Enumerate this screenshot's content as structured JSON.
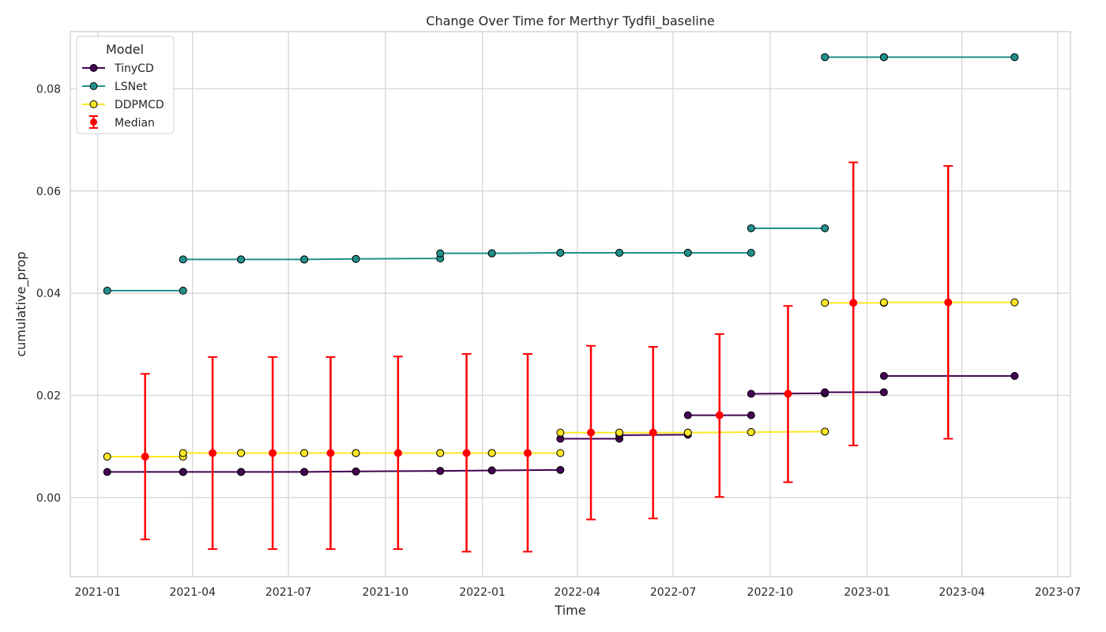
{
  "chart_data": {
    "type": "line",
    "title": "Change Over Time for Merthyr Tydfil_baseline",
    "xlabel": "Time",
    "ylabel": "cumulative_prop",
    "x_type": "date",
    "xlim": [
      "2020-12-06",
      "2023-07-13"
    ],
    "ylim": [
      -0.0155,
      0.0912
    ],
    "x_ticks": [
      "2021-01",
      "2021-04",
      "2021-07",
      "2021-10",
      "2022-01",
      "2022-04",
      "2022-07",
      "2022-10",
      "2023-01",
      "2023-04",
      "2023-07"
    ],
    "y_ticks": [
      0.0,
      0.02,
      0.04,
      0.06,
      0.08
    ],
    "y_tick_labels": [
      "0.00",
      "0.02",
      "0.04",
      "0.06",
      "0.08"
    ],
    "grid": true,
    "legend": {
      "title": "Model",
      "placement": "top-left"
    },
    "series": [
      {
        "name": "TinyCD",
        "color": "#440154",
        "segments": [
          {
            "x": [
              "2021-01-10",
              "2021-03-23"
            ],
            "y": [
              0.005,
              0.005
            ]
          },
          {
            "x": [
              "2021-03-23",
              "2021-05-17"
            ],
            "y": [
              0.005,
              0.005
            ]
          },
          {
            "x": [
              "2021-05-17",
              "2021-07-16"
            ],
            "y": [
              0.005,
              0.005
            ]
          },
          {
            "x": [
              "2021-07-16",
              "2021-09-03"
            ],
            "y": [
              0.005,
              0.0051
            ]
          },
          {
            "x": [
              "2021-09-03",
              "2021-11-22"
            ],
            "y": [
              0.0051,
              0.0052
            ]
          },
          {
            "x": [
              "2021-11-22",
              "2022-01-10"
            ],
            "y": [
              0.0052,
              0.0053
            ]
          },
          {
            "x": [
              "2022-01-10",
              "2022-03-16"
            ],
            "y": [
              0.0053,
              0.0054
            ]
          },
          {
            "x": [
              "2022-03-16",
              "2022-05-11"
            ],
            "y": [
              0.0115,
              0.0115
            ]
          },
          {
            "x": [
              "2022-05-11",
              "2022-07-15"
            ],
            "y": [
              0.0122,
              0.0123
            ]
          },
          {
            "x": [
              "2022-07-15",
              "2022-09-13"
            ],
            "y": [
              0.0161,
              0.0161
            ]
          },
          {
            "x": [
              "2022-09-13",
              "2022-11-22"
            ],
            "y": [
              0.0203,
              0.0204
            ]
          },
          {
            "x": [
              "2022-11-22",
              "2023-01-17"
            ],
            "y": [
              0.0206,
              0.0206
            ]
          },
          {
            "x": [
              "2023-01-17",
              "2023-05-21"
            ],
            "y": [
              0.0238,
              0.0238
            ]
          }
        ]
      },
      {
        "name": "LSNet",
        "color": "#21918c",
        "segments": [
          {
            "x": [
              "2021-01-10",
              "2021-03-23"
            ],
            "y": [
              0.0405,
              0.0405
            ]
          },
          {
            "x": [
              "2021-03-23",
              "2021-05-17"
            ],
            "y": [
              0.0466,
              0.0466
            ]
          },
          {
            "x": [
              "2021-05-17",
              "2021-07-16"
            ],
            "y": [
              0.0466,
              0.0466
            ]
          },
          {
            "x": [
              "2021-07-16",
              "2021-09-03"
            ],
            "y": [
              0.0466,
              0.0467
            ]
          },
          {
            "x": [
              "2021-09-03",
              "2021-11-22"
            ],
            "y": [
              0.0467,
              0.0468
            ]
          },
          {
            "x": [
              "2021-11-22",
              "2022-01-10"
            ],
            "y": [
              0.0478,
              0.0478
            ]
          },
          {
            "x": [
              "2022-01-10",
              "2022-03-16"
            ],
            "y": [
              0.0478,
              0.0479
            ]
          },
          {
            "x": [
              "2022-03-16",
              "2022-05-11"
            ],
            "y": [
              0.0479,
              0.0479
            ]
          },
          {
            "x": [
              "2022-05-11",
              "2022-07-15"
            ],
            "y": [
              0.0479,
              0.0479
            ]
          },
          {
            "x": [
              "2022-07-15",
              "2022-09-13"
            ],
            "y": [
              0.0479,
              0.0479
            ]
          },
          {
            "x": [
              "2022-09-13",
              "2022-11-22"
            ],
            "y": [
              0.0527,
              0.0527
            ]
          },
          {
            "x": [
              "2022-11-22",
              "2023-01-17"
            ],
            "y": [
              0.0862,
              0.0862
            ]
          },
          {
            "x": [
              "2023-01-17",
              "2023-05-21"
            ],
            "y": [
              0.0862,
              0.0862
            ]
          }
        ]
      },
      {
        "name": "DDPMCD",
        "color": "#fde725",
        "segments": [
          {
            "x": [
              "2021-01-10",
              "2021-03-23"
            ],
            "y": [
              0.008,
              0.008
            ]
          },
          {
            "x": [
              "2021-03-23",
              "2021-05-17"
            ],
            "y": [
              0.0087,
              0.0087
            ]
          },
          {
            "x": [
              "2021-05-17",
              "2021-07-16"
            ],
            "y": [
              0.0087,
              0.0087
            ]
          },
          {
            "x": [
              "2021-07-16",
              "2021-09-03"
            ],
            "y": [
              0.0087,
              0.0087
            ]
          },
          {
            "x": [
              "2021-09-03",
              "2021-11-22"
            ],
            "y": [
              0.0087,
              0.0087
            ]
          },
          {
            "x": [
              "2021-11-22",
              "2022-01-10"
            ],
            "y": [
              0.0087,
              0.0087
            ]
          },
          {
            "x": [
              "2022-01-10",
              "2022-03-16"
            ],
            "y": [
              0.0087,
              0.0087
            ]
          },
          {
            "x": [
              "2022-03-16",
              "2022-05-11"
            ],
            "y": [
              0.0127,
              0.0127
            ]
          },
          {
            "x": [
              "2022-05-11",
              "2022-07-15"
            ],
            "y": [
              0.0127,
              0.0127
            ]
          },
          {
            "x": [
              "2022-07-15",
              "2022-09-13"
            ],
            "y": [
              0.0127,
              0.0128
            ]
          },
          {
            "x": [
              "2022-09-13",
              "2022-11-22"
            ],
            "y": [
              0.0128,
              0.0129
            ]
          },
          {
            "x": [
              "2022-11-22",
              "2023-01-17"
            ],
            "y": [
              0.0381,
              0.0381
            ]
          },
          {
            "x": [
              "2023-01-17",
              "2023-05-21"
            ],
            "y": [
              0.0382,
              0.0382
            ]
          }
        ]
      }
    ],
    "median": {
      "name": "Median",
      "color": "#ff0000",
      "points": [
        {
          "x": "2021-02-15",
          "y": 0.008,
          "low": -0.0082,
          "high": 0.0242
        },
        {
          "x": "2021-04-20",
          "y": 0.0087,
          "low": -0.0101,
          "high": 0.0275
        },
        {
          "x": "2021-06-16",
          "y": 0.0087,
          "low": -0.0101,
          "high": 0.0275
        },
        {
          "x": "2021-08-10",
          "y": 0.0087,
          "low": -0.0101,
          "high": 0.0275
        },
        {
          "x": "2021-10-13",
          "y": 0.0087,
          "low": -0.0101,
          "high": 0.0276
        },
        {
          "x": "2021-12-17",
          "y": 0.0087,
          "low": -0.0106,
          "high": 0.0281
        },
        {
          "x": "2022-02-13",
          "y": 0.0087,
          "low": -0.0106,
          "high": 0.0281
        },
        {
          "x": "2022-04-14",
          "y": 0.0127,
          "low": -0.0043,
          "high": 0.0297
        },
        {
          "x": "2022-06-12",
          "y": 0.0127,
          "low": -0.0041,
          "high": 0.0295
        },
        {
          "x": "2022-08-14",
          "y": 0.0161,
          "low": 0.0001,
          "high": 0.032
        },
        {
          "x": "2022-10-18",
          "y": 0.0203,
          "low": 0.003,
          "high": 0.0375
        },
        {
          "x": "2022-12-19",
          "y": 0.0381,
          "low": 0.0102,
          "high": 0.0656
        },
        {
          "x": "2023-03-19",
          "y": 0.0382,
          "low": 0.0115,
          "high": 0.0649
        }
      ]
    }
  }
}
